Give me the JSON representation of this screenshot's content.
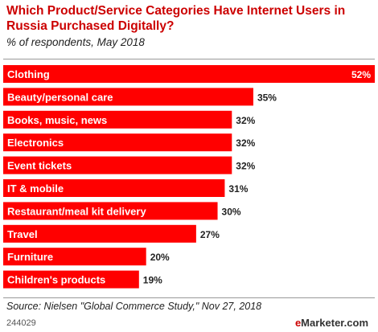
{
  "header": {
    "title": "Which Product/Service Categories Have Internet Users in Russia Purchased Digitally?",
    "subtitle": "% of respondents, May 2018"
  },
  "chart_data": {
    "type": "bar",
    "orientation": "horizontal",
    "categories": [
      "Clothing",
      "Beauty/personal care",
      "Books, music, news",
      "Electronics",
      "Event tickets",
      "IT & mobile",
      "Restaurant/meal kit delivery",
      "Travel",
      "Furniture",
      "Children's products"
    ],
    "values": [
      52,
      35,
      32,
      32,
      32,
      31,
      30,
      27,
      20,
      19
    ],
    "value_labels": [
      "52%",
      "35%",
      "32%",
      "32%",
      "32%",
      "31%",
      "30%",
      "27%",
      "20%",
      "19%"
    ],
    "xlim": [
      0,
      52
    ],
    "grid": false,
    "legend": "none",
    "colors": {
      "bar": "#ff0000",
      "title": "#cc0000"
    }
  },
  "footer": {
    "source": "Source: Nielsen \"Global Commerce Study,\" Nov 27, 2018",
    "chart_id": "244029",
    "brand_e": "e",
    "brand_rest": "Marketer",
    "brand_domain": ".com"
  }
}
